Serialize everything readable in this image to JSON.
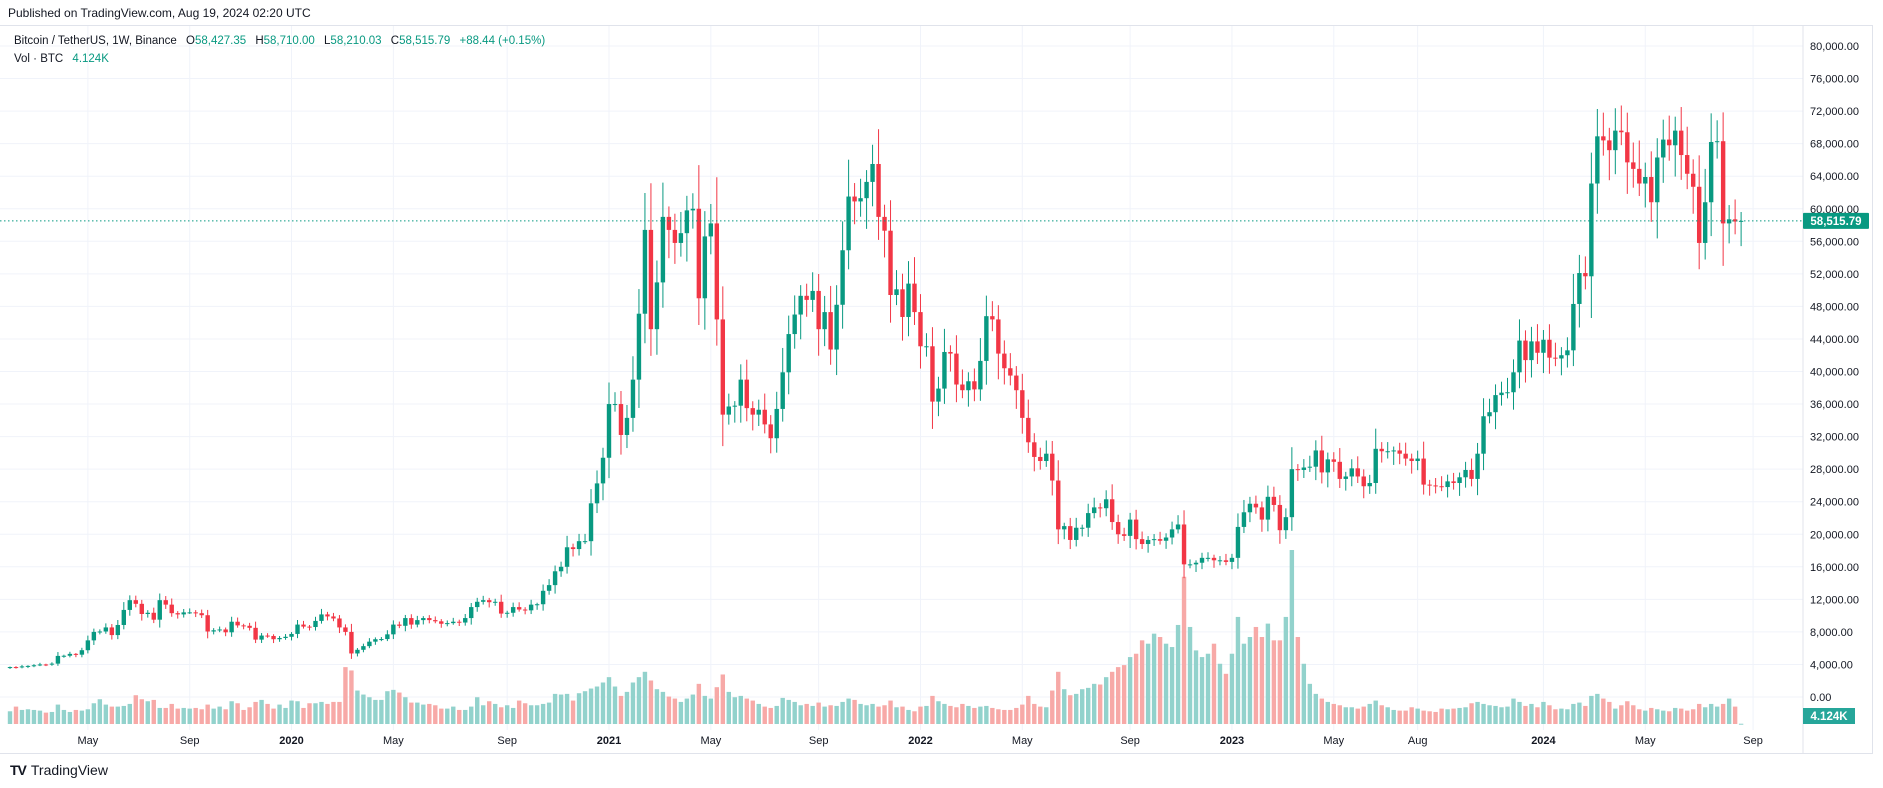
{
  "header": {
    "published": "Published on TradingView.com, Aug 19, 2024 02:20 UTC"
  },
  "legend": {
    "symbol": "Bitcoin / TetherUS, 1W, Binance",
    "open_label": "O",
    "open": "58,427.35",
    "high_label": "H",
    "high": "58,710.00",
    "low_label": "L",
    "low": "58,210.03",
    "close_label": "C",
    "close": "58,515.79",
    "change": "+88.44 (+0.15%)",
    "vol_label": "Vol · BTC",
    "vol_value": "4.124K"
  },
  "footer": {
    "logo_mark": "TV",
    "brand": "TradingView"
  },
  "colors": {
    "up": "#089981",
    "down": "#f23645",
    "vol_up": "#92d2cc",
    "vol_down": "#f7a9a7",
    "grid": "#f0f3fa"
  },
  "chart_data": {
    "type": "candlestick",
    "title": "Bitcoin / TetherUS, 1W, Binance",
    "interval": "1W",
    "start_week": "2019-02-04",
    "first_open": 3650,
    "ylim": [
      0,
      80000
    ],
    "y_ticks": [
      "80,000.00",
      "76,000.00",
      "72,000.00",
      "68,000.00",
      "64,000.00",
      "60,000.00",
      "56,000.00",
      "52,000.00",
      "48,000.00",
      "44,000.00",
      "40,000.00",
      "36,000.00",
      "32,000.00",
      "28,000.00",
      "24,000.00",
      "20,000.00",
      "16,000.00",
      "12,000.00",
      "8,000.00",
      "4,000.00",
      "0.00"
    ],
    "y_tick_values": [
      80000,
      76000,
      72000,
      68000,
      64000,
      60000,
      56000,
      52000,
      48000,
      44000,
      40000,
      36000,
      32000,
      28000,
      24000,
      20000,
      16000,
      12000,
      8000,
      4000,
      0
    ],
    "x_ticks": [
      {
        "label": "May",
        "week": 13
      },
      {
        "label": "Sep",
        "week": 30
      },
      {
        "label": "2020",
        "week": 47
      },
      {
        "label": "May",
        "week": 64
      },
      {
        "label": "Sep",
        "week": 83
      },
      {
        "label": "2021",
        "week": 100
      },
      {
        "label": "May",
        "week": 117
      },
      {
        "label": "Sep",
        "week": 135
      },
      {
        "label": "2022",
        "week": 152
      },
      {
        "label": "May",
        "week": 169
      },
      {
        "label": "Sep",
        "week": 187
      },
      {
        "label": "2023",
        "week": 204
      },
      {
        "label": "May",
        "week": 221
      },
      {
        "label": "Aug",
        "week": 235
      },
      {
        "label": "2024",
        "week": 256
      },
      {
        "label": "May",
        "week": 273
      },
      {
        "label": "Sep",
        "week": 291
      }
    ],
    "last_price": 58515.79,
    "last_price_label": "58,515.79",
    "last_volume_label": "4.124K",
    "closes": [
      3680,
      3640,
      3760,
      3820,
      3900,
      4000,
      3990,
      4100,
      5050,
      5070,
      5300,
      5200,
      5750,
      6960,
      8000,
      8050,
      8550,
      7610,
      8850,
      10700,
      11900,
      11450,
      10200,
      10350,
      9500,
      11900,
      11350,
      10300,
      10150,
      10400,
      10400,
      10300,
      10050,
      8050,
      8200,
      8300,
      7950,
      9250,
      8800,
      8750,
      8500,
      7050,
      7550,
      7500,
      7100,
      7250,
      7400,
      7750,
      8900,
      8650,
      8600,
      9350,
      10150,
      9900,
      9650,
      8550,
      8000,
      5350,
      5800,
      6250,
      6800,
      7100,
      7120,
      7700,
      8900,
      8750,
      9700,
      8900,
      9450,
      9700,
      9450,
      9300,
      9000,
      9080,
      9250,
      9150,
      9700,
      11050,
      11700,
      11900,
      11650,
      11700,
      10250,
      10350,
      11050,
      10750,
      10650,
      11350,
      11400,
      13050,
      13750,
      15450,
      16000,
      18400,
      18180,
      19150,
      19150,
      23800,
      26250,
      29400,
      36000,
      36000,
      32200,
      34300,
      39000,
      47100,
      57400,
      45200,
      50950,
      59000,
      57400,
      55800,
      57000,
      59800,
      60000,
      49000,
      56600,
      58200,
      46400,
      34700,
      35700,
      35800,
      39000,
      35500,
      34700,
      35300,
      33500,
      31800,
      35400,
      39900,
      44600,
      47000,
      49300,
      48800,
      49900,
      45200,
      47300,
      42700,
      48200,
      54900,
      61500,
      60900,
      61300,
      63300,
      65500,
      59000,
      57300,
      49400,
      50100,
      46700,
      50800,
      47300,
      43100,
      43100,
      36300,
      37900,
      42400,
      42200,
      38400,
      37700,
      38800,
      37800,
      41300,
      46800,
      46400,
      42200,
      40400,
      39500,
      37700,
      34300,
      31300,
      29500,
      29000,
      29900,
      26600,
      20600,
      21000,
      19300,
      20800,
      20800,
      22600,
      23300,
      23200,
      24300,
      21500,
      20000,
      19800,
      21800,
      19400,
      18800,
      19300,
      19400,
      19200,
      19600,
      20600,
      21200,
      16300,
      16300,
      16500,
      17100,
      17100,
      16800,
      16800,
      16600,
      17100,
      20900,
      22700,
      23750,
      23300,
      21800,
      24600,
      23600,
      20500,
      22100,
      28000,
      27900,
      28200,
      28300,
      30300,
      27600,
      29200,
      28900,
      26800,
      27100,
      28100,
      27100,
      25900,
      26300,
      30500,
      30200,
      30200,
      30300,
      29900,
      29300,
      29000,
      29300,
      26100,
      26000,
      25900,
      25800,
      26500,
      26300,
      27000,
      27900,
      26800,
      29900,
      34500,
      35000,
      37100,
      37400,
      37450,
      39900,
      43800,
      41400,
      43700,
      42300,
      43900,
      41700,
      41600,
      42000,
      42600,
      48300,
      52100,
      51700,
      63100,
      68900,
      68400,
      67200,
      69600,
      69400,
      65700,
      64900,
      63100,
      63900,
      60800,
      66300,
      68500,
      67800,
      69600,
      66600,
      64300,
      62700,
      55800,
      60800,
      68200,
      68300,
      58200,
      58700,
      58427.35,
      58515.79
    ],
    "volumes_k": [
      190,
      260,
      210,
      220,
      210,
      200,
      170,
      180,
      290,
      210,
      180,
      210,
      200,
      220,
      310,
      370,
      290,
      260,
      260,
      270,
      300,
      430,
      370,
      340,
      360,
      240,
      240,
      300,
      230,
      240,
      230,
      240,
      220,
      290,
      230,
      260,
      220,
      340,
      310,
      210,
      250,
      330,
      360,
      300,
      230,
      290,
      240,
      350,
      340,
      240,
      310,
      310,
      330,
      300,
      330,
      330,
      850,
      800,
      500,
      440,
      400,
      360,
      360,
      490,
      510,
      470,
      400,
      320,
      320,
      290,
      300,
      280,
      230,
      230,
      260,
      210,
      210,
      260,
      400,
      280,
      340,
      300,
      250,
      280,
      240,
      350,
      310,
      280,
      280,
      300,
      320,
      450,
      440,
      450,
      350,
      460,
      490,
      530,
      560,
      620,
      700,
      560,
      420,
      480,
      620,
      700,
      780,
      650,
      520,
      480,
      410,
      380,
      330,
      380,
      440,
      600,
      420,
      380,
      550,
      740,
      480,
      400,
      420,
      380,
      350,
      300,
      260,
      240,
      270,
      390,
      360,
      330,
      280,
      300,
      270,
      320,
      260,
      280,
      270,
      330,
      380,
      360,
      300,
      280,
      300,
      260,
      280,
      350,
      250,
      260,
      210,
      190,
      260,
      270,
      420,
      340,
      300,
      270,
      250,
      300,
      270,
      240,
      260,
      270,
      240,
      220,
      210,
      210,
      240,
      290,
      420,
      300,
      260,
      250,
      500,
      780,
      520,
      430,
      450,
      520,
      540,
      600,
      590,
      700,
      780,
      850,
      880,
      1000,
      1050,
      1250,
      1200,
      1350,
      1300,
      1200,
      1150,
      1480,
      2200,
      1450,
      1100,
      1000,
      1050,
      1200,
      900,
      750,
      1050,
      1600,
      1200,
      1300,
      1450,
      1300,
      1500,
      1250,
      1250,
      1600,
      2600,
      1300,
      900,
      600,
      450,
      380,
      330,
      300,
      280,
      250,
      250,
      230,
      260,
      300,
      350,
      280,
      250,
      210,
      200,
      200,
      250,
      230,
      200,
      190,
      180,
      230,
      220,
      230,
      240,
      250,
      310,
      330,
      300,
      280,
      270,
      250,
      260,
      380,
      330,
      270,
      300,
      250,
      330,
      280,
      220,
      230,
      220,
      300,
      320,
      270,
      420,
      450,
      380,
      330,
      230,
      280,
      340,
      280,
      220,
      200,
      240,
      220,
      200,
      190,
      240,
      230,
      200,
      220,
      300,
      250,
      300,
      260,
      300,
      380,
      260,
      4.124
    ]
  }
}
